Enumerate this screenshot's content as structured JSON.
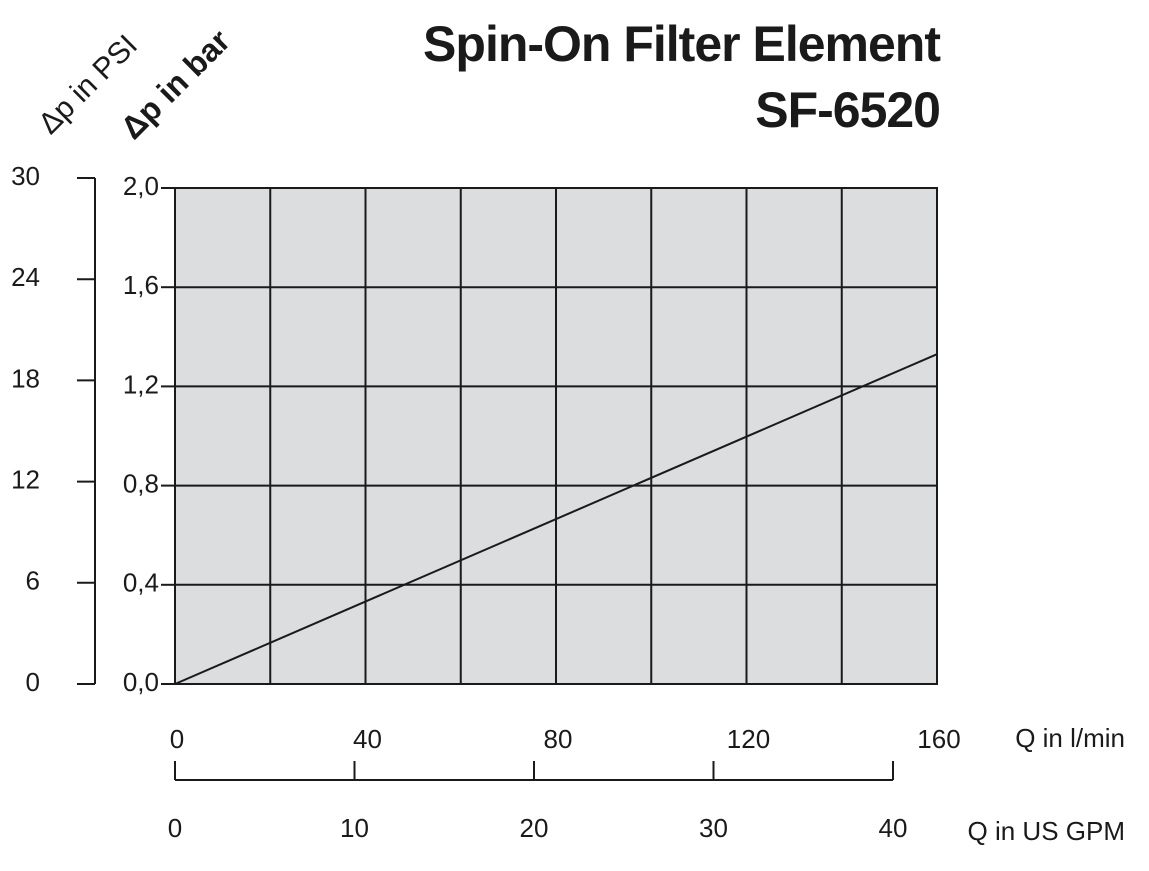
{
  "chart_data": {
    "type": "line",
    "title": "Spin-On Filter Element",
    "subtitle": "SF-6520",
    "y_label": "Δp in bar",
    "y2_label": "Δp in PSI",
    "x_label": "Q in l/min",
    "x2_label": "Q in US GPM",
    "x": [
      0,
      160
    ],
    "values": [
      0,
      1.33
    ],
    "color": "#1a1a1a",
    "xlim": [
      0,
      160
    ],
    "xticks": [
      0,
      40,
      80,
      120,
      160
    ],
    "xgrid": [
      0,
      20,
      40,
      60,
      80,
      100,
      120,
      140,
      160
    ],
    "ylim": [
      0,
      2
    ],
    "yticks": [
      {
        "value": 0,
        "label": "0,0"
      },
      {
        "value": 0.4,
        "label": "0,4"
      },
      {
        "value": 0.8,
        "label": "0,8"
      },
      {
        "value": 1.2,
        "label": "1,2"
      },
      {
        "value": 1.6,
        "label": "1,6"
      },
      {
        "value": 2,
        "label": "2,0"
      }
    ],
    "y2lim": [
      0,
      30
    ],
    "y2ticks": [
      0,
      6,
      12,
      18,
      24,
      30
    ],
    "x2lim": [
      0,
      40
    ],
    "x2ticks": [
      0,
      10,
      20,
      30,
      40
    ],
    "grid": true,
    "plot_background": "#dcdddf",
    "title_color": "#0a8057"
  }
}
